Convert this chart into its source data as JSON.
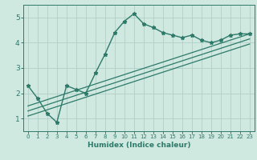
{
  "xlabel": "Humidex (Indice chaleur)",
  "ylabel": "",
  "bg_color": "#cfe8e0",
  "grid_color": "#b0cfc8",
  "line_color": "#2d7a6a",
  "xlim": [
    -0.5,
    23.5
  ],
  "ylim": [
    0.5,
    5.5
  ],
  "xticks": [
    0,
    1,
    2,
    3,
    4,
    5,
    6,
    7,
    8,
    9,
    10,
    11,
    12,
    13,
    14,
    15,
    16,
    17,
    18,
    19,
    20,
    21,
    22,
    23
  ],
  "yticks": [
    1,
    2,
    3,
    4,
    5
  ],
  "curve_x": [
    0,
    1,
    2,
    3,
    4,
    5,
    6,
    7,
    8,
    9,
    10,
    11,
    12,
    13,
    14,
    15,
    16,
    17,
    18,
    19,
    20,
    21,
    22,
    23
  ],
  "curve_y": [
    2.3,
    1.8,
    1.2,
    0.85,
    2.3,
    2.15,
    2.0,
    2.8,
    3.55,
    4.4,
    4.85,
    5.15,
    4.75,
    4.6,
    4.4,
    4.3,
    4.2,
    4.3,
    4.1,
    4.0,
    4.1,
    4.3,
    4.35,
    4.35
  ],
  "line1_x": [
    0,
    23
  ],
  "line1_y": [
    1.5,
    4.35
  ],
  "line2_x": [
    0,
    23
  ],
  "line2_y": [
    1.3,
    4.15
  ],
  "line3_x": [
    0,
    23
  ],
  "line3_y": [
    1.1,
    3.95
  ]
}
